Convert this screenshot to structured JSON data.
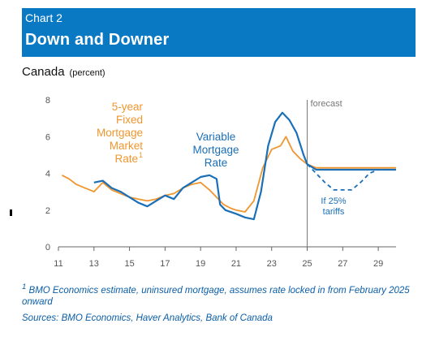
{
  "header": {
    "kicker": "Chart 2",
    "title": "Down and Downer"
  },
  "subtitle": {
    "label": "Canada",
    "unit": "(percent)"
  },
  "footnote": {
    "marker": "1",
    "text": "BMO Economics estimate, uninsured mortgage, assumes rate locked in from February 2025 onward"
  },
  "sources": "Sources: BMO Economics, Haver Analytics, Bank of Canada",
  "colors": {
    "header_bg": "#0a79c4",
    "variable": "#1a6fb7",
    "fixed": "#f0962e",
    "note": "#0a5ea8"
  },
  "chart_data": {
    "type": "line",
    "title": "Down and Downer",
    "ylim": [
      0,
      8
    ],
    "xlim": [
      2011,
      2030
    ],
    "yticks": [
      "0",
      "2",
      "4",
      "6",
      "8"
    ],
    "xticks": [
      "11",
      "13",
      "15",
      "17",
      "19",
      "21",
      "23",
      "25",
      "27",
      "29"
    ],
    "xtick_values": [
      2011,
      2013,
      2015,
      2017,
      2019,
      2021,
      2023,
      2025,
      2027,
      2029
    ],
    "forecast_label": "forecast",
    "forecast_start": 2025.0,
    "annotations": {
      "fixed": [
        "5-year",
        "Fixed",
        "Mortgage",
        "Market",
        "Rate"
      ],
      "fixed_superscript": "1",
      "variable": [
        "Variable",
        "Mortgage",
        "Rate"
      ],
      "tariff": [
        "If 25%",
        "tariffs"
      ]
    },
    "series": [
      {
        "name": "5-year Fixed Mortgage Market Rate",
        "color": "#f0962e",
        "x": [
          2011.2,
          2011.6,
          2012.0,
          2012.5,
          2013.0,
          2013.5,
          2014.0,
          2014.5,
          2015.0,
          2015.5,
          2016.0,
          2016.5,
          2017.0,
          2017.5,
          2018.0,
          2018.5,
          2019.0,
          2019.5,
          2020.0,
          2020.3,
          2020.7,
          2021.0,
          2021.5,
          2022.0,
          2022.5,
          2023.0,
          2023.5,
          2023.8,
          2024.2,
          2024.6,
          2025.0,
          2025.5,
          2026.0,
          2027.0,
          2028.0,
          2029.0,
          2030.0
        ],
        "y": [
          3.9,
          3.7,
          3.4,
          3.2,
          3.0,
          3.5,
          3.1,
          2.9,
          2.7,
          2.6,
          2.5,
          2.6,
          2.8,
          2.9,
          3.2,
          3.4,
          3.5,
          3.1,
          2.6,
          2.3,
          2.1,
          2.0,
          1.9,
          2.5,
          4.3,
          5.3,
          5.5,
          6.0,
          5.2,
          4.8,
          4.5,
          4.3,
          4.3,
          4.3,
          4.3,
          4.3,
          4.3
        ]
      },
      {
        "name": "Variable Mortgage Rate",
        "color": "#1a6fb7",
        "x": [
          2013.0,
          2013.5,
          2014.0,
          2014.5,
          2015.0,
          2015.5,
          2016.0,
          2016.5,
          2017.0,
          2017.5,
          2018.0,
          2018.5,
          2019.0,
          2019.5,
          2019.9,
          2020.1,
          2020.4,
          2021.0,
          2021.5,
          2022.0,
          2022.4,
          2022.8,
          2023.2,
          2023.6,
          2024.0,
          2024.4,
          2024.8,
          2025.0,
          2025.5,
          2026.0,
          2027.0,
          2028.0,
          2029.0,
          2030.0
        ],
        "y": [
          3.5,
          3.6,
          3.2,
          3.0,
          2.7,
          2.4,
          2.2,
          2.5,
          2.8,
          2.6,
          3.2,
          3.5,
          3.8,
          3.9,
          3.7,
          2.3,
          2.0,
          1.8,
          1.6,
          1.5,
          3.0,
          5.5,
          6.8,
          7.3,
          6.9,
          6.2,
          5.0,
          4.5,
          4.2,
          4.2,
          4.2,
          4.2,
          4.2,
          4.2
        ]
      },
      {
        "name": "If 25% tariffs",
        "color": "#1a6fb7",
        "style": "dashed",
        "x": [
          2025.0,
          2025.5,
          2026.0,
          2026.5,
          2027.0,
          2027.5,
          2028.0,
          2028.5,
          2029.0,
          2030.0
        ],
        "y": [
          4.5,
          4.0,
          3.5,
          3.1,
          3.1,
          3.1,
          3.5,
          4.0,
          4.2,
          4.2
        ]
      }
    ]
  }
}
